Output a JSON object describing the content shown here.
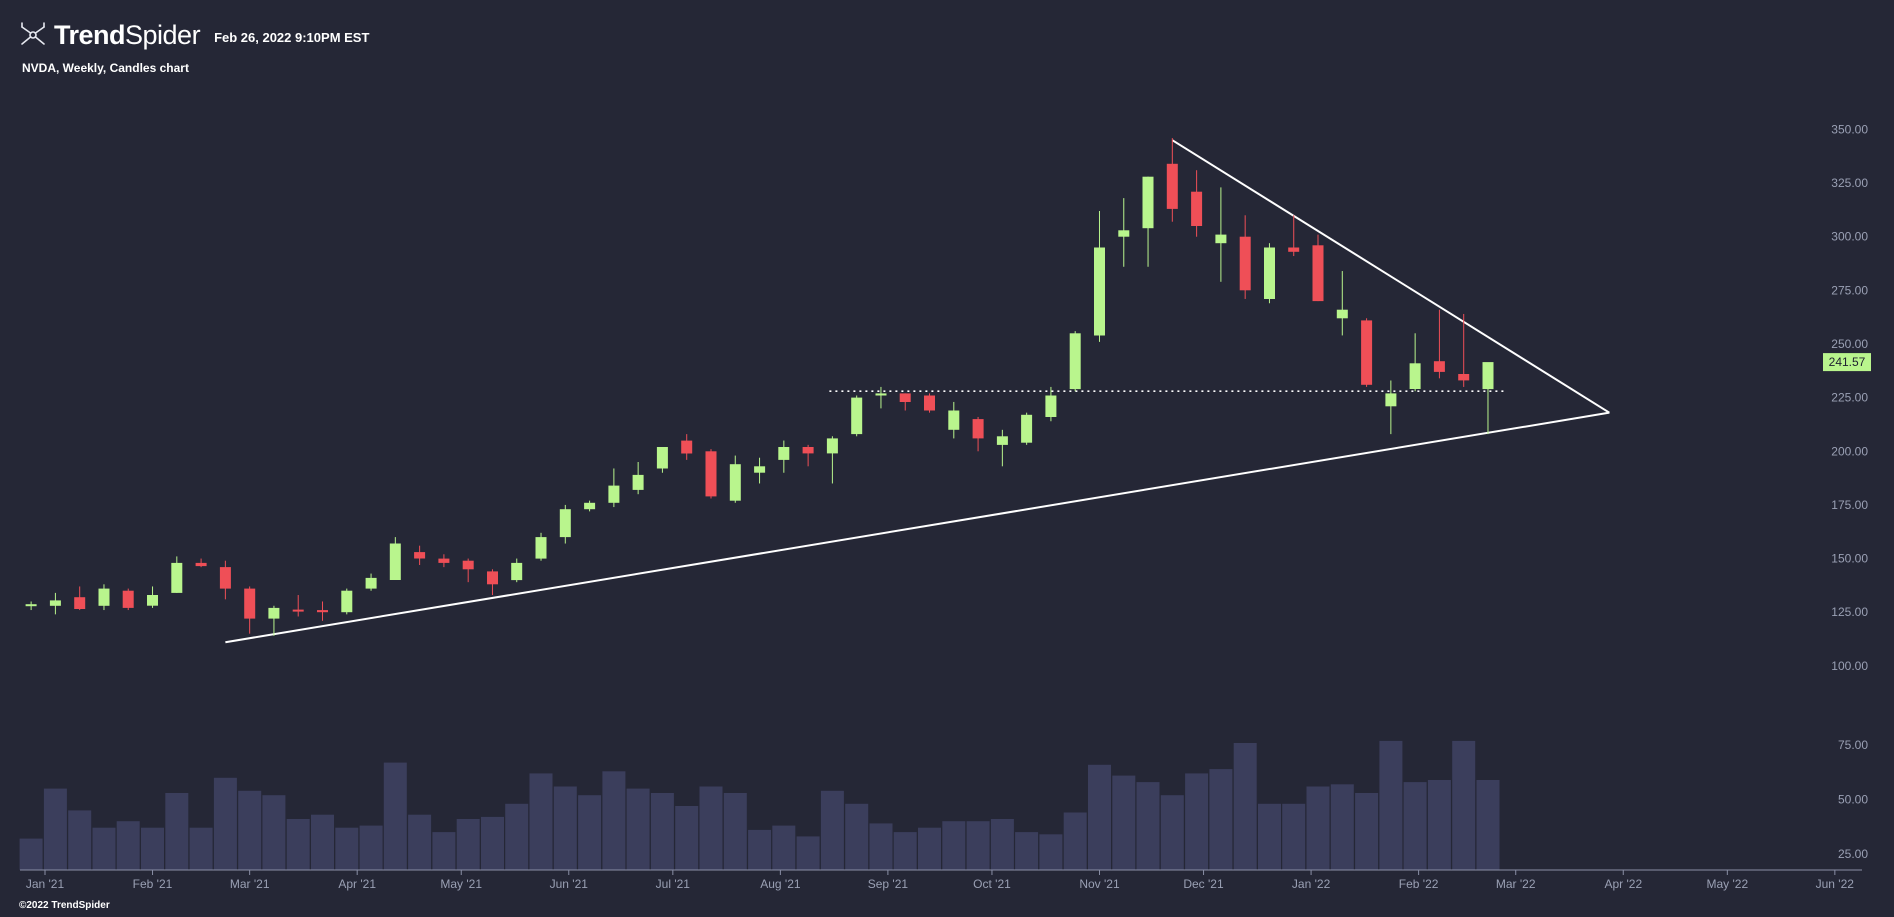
{
  "header": {
    "brand_bold": "Trend",
    "brand_light": "Spider",
    "timestamp": "Feb 26, 2022 9:10PM EST",
    "logo_icon": "trendspider-logo-icon"
  },
  "subtitle": "NVDA, Weekly, Candles chart",
  "copyright": "©2022 TrendSpider",
  "colors": {
    "background": "#252736",
    "up": "#b9f58d",
    "down": "#ef4f57",
    "volume": "#3b3e5c",
    "trendline": "#ffffff",
    "axis_text": "#9aa0b4"
  },
  "chart_data": {
    "type": "candlestick",
    "ylim": [
      92,
      360
    ],
    "volume_ylim": [
      18,
      82
    ],
    "y_ticks": [
      "350.00",
      "325.00",
      "300.00",
      "275.00",
      "250.00",
      "225.00",
      "200.00",
      "175.00",
      "150.00",
      "125.00",
      "100.00"
    ],
    "volume_ticks": [
      "75.00",
      "50.00",
      "25.00"
    ],
    "x_ticks": [
      {
        "label": "Jan '21",
        "date": "2021-01-01"
      },
      {
        "label": "Feb '21",
        "date": "2021-02-01"
      },
      {
        "label": "Mar '21",
        "date": "2021-03-01"
      },
      {
        "label": "Apr '21",
        "date": "2021-04-01"
      },
      {
        "label": "May '21",
        "date": "2021-05-01"
      },
      {
        "label": "Jun '21",
        "date": "2021-06-01"
      },
      {
        "label": "Jul '21",
        "date": "2021-07-01"
      },
      {
        "label": "Aug '21",
        "date": "2021-08-01"
      },
      {
        "label": "Sep '21",
        "date": "2021-09-01"
      },
      {
        "label": "Oct '21",
        "date": "2021-10-01"
      },
      {
        "label": "Nov '21",
        "date": "2021-11-01"
      },
      {
        "label": "Dec '21",
        "date": "2021-12-01"
      },
      {
        "label": "Jan '22",
        "date": "2022-01-01"
      },
      {
        "label": "Feb '22",
        "date": "2022-02-01"
      },
      {
        "label": "Mar '22",
        "date": "2022-03-01"
      },
      {
        "label": "Apr '22",
        "date": "2022-04-01"
      },
      {
        "label": "May '22",
        "date": "2022-05-01"
      },
      {
        "label": "Jun '22",
        "date": "2022-06-01"
      }
    ],
    "last_price": "241.57",
    "candles": [
      {
        "date": "2020-12-28",
        "o": 128,
        "h": 130,
        "l": 126,
        "c": 128.5
      },
      {
        "date": "2021-01-04",
        "o": 128,
        "h": 134,
        "l": 124,
        "c": 130.5
      },
      {
        "date": "2021-01-11",
        "o": 132,
        "h": 137,
        "l": 126,
        "c": 126.5
      },
      {
        "date": "2021-01-18",
        "o": 128,
        "h": 138,
        "l": 126,
        "c": 136
      },
      {
        "date": "2021-01-25",
        "o": 135,
        "h": 136,
        "l": 126,
        "c": 127
      },
      {
        "date": "2021-02-01",
        "o": 128,
        "h": 137,
        "l": 127,
        "c": 133
      },
      {
        "date": "2021-02-08",
        "o": 134,
        "h": 151,
        "l": 134,
        "c": 148
      },
      {
        "date": "2021-02-15",
        "o": 148,
        "h": 150,
        "l": 146,
        "c": 146.5
      },
      {
        "date": "2021-02-22",
        "o": 146,
        "h": 149,
        "l": 131,
        "c": 136
      },
      {
        "date": "2021-03-01",
        "o": 136,
        "h": 137,
        "l": 115,
        "c": 122
      },
      {
        "date": "2021-03-08",
        "o": 122,
        "h": 128,
        "l": 114,
        "c": 127
      },
      {
        "date": "2021-03-15",
        "o": 126,
        "h": 133,
        "l": 123,
        "c": 125.5
      },
      {
        "date": "2021-03-22",
        "o": 126,
        "h": 130,
        "l": 121,
        "c": 125
      },
      {
        "date": "2021-03-29",
        "o": 125,
        "h": 136,
        "l": 124,
        "c": 135
      },
      {
        "date": "2021-04-05",
        "o": 136,
        "h": 143,
        "l": 135,
        "c": 141
      },
      {
        "date": "2021-04-12",
        "o": 140,
        "h": 160,
        "l": 140,
        "c": 157
      },
      {
        "date": "2021-04-19",
        "o": 153,
        "h": 156,
        "l": 147,
        "c": 150
      },
      {
        "date": "2021-04-26",
        "o": 150,
        "h": 152,
        "l": 146,
        "c": 148
      },
      {
        "date": "2021-05-03",
        "o": 149,
        "h": 150,
        "l": 139,
        "c": 145
      },
      {
        "date": "2021-05-10",
        "o": 144,
        "h": 145,
        "l": 133,
        "c": 138
      },
      {
        "date": "2021-05-17",
        "o": 140,
        "h": 150,
        "l": 139,
        "c": 148
      },
      {
        "date": "2021-05-24",
        "o": 150,
        "h": 162,
        "l": 149,
        "c": 160
      },
      {
        "date": "2021-05-31",
        "o": 160,
        "h": 175,
        "l": 157,
        "c": 173
      },
      {
        "date": "2021-06-07",
        "o": 173,
        "h": 177,
        "l": 172,
        "c": 176
      },
      {
        "date": "2021-06-14",
        "o": 176,
        "h": 192,
        "l": 174,
        "c": 184
      },
      {
        "date": "2021-06-21",
        "o": 182,
        "h": 195,
        "l": 180,
        "c": 189
      },
      {
        "date": "2021-06-28",
        "o": 192,
        "h": 202,
        "l": 190,
        "c": 202
      },
      {
        "date": "2021-07-05",
        "o": 205,
        "h": 208,
        "l": 196,
        "c": 199
      },
      {
        "date": "2021-07-12",
        "o": 200,
        "h": 201,
        "l": 178,
        "c": 179
      },
      {
        "date": "2021-07-19",
        "o": 177,
        "h": 198,
        "l": 176,
        "c": 194
      },
      {
        "date": "2021-07-26",
        "o": 190,
        "h": 197,
        "l": 185,
        "c": 193
      },
      {
        "date": "2021-08-02",
        "o": 196,
        "h": 205,
        "l": 190,
        "c": 202
      },
      {
        "date": "2021-08-09",
        "o": 202,
        "h": 203,
        "l": 193,
        "c": 199
      },
      {
        "date": "2021-08-16",
        "o": 199,
        "h": 207,
        "l": 185,
        "c": 206
      },
      {
        "date": "2021-08-23",
        "o": 208,
        "h": 226,
        "l": 207,
        "c": 225
      },
      {
        "date": "2021-08-30",
        "o": 226,
        "h": 230,
        "l": 220,
        "c": 227
      },
      {
        "date": "2021-09-06",
        "o": 227,
        "h": 227,
        "l": 219,
        "c": 223
      },
      {
        "date": "2021-09-13",
        "o": 226,
        "h": 227,
        "l": 218,
        "c": 219
      },
      {
        "date": "2021-09-20",
        "o": 210,
        "h": 223,
        "l": 206,
        "c": 219
      },
      {
        "date": "2021-09-27",
        "o": 215,
        "h": 216,
        "l": 200,
        "c": 206
      },
      {
        "date": "2021-10-04",
        "o": 203,
        "h": 210,
        "l": 193,
        "c": 207
      },
      {
        "date": "2021-10-11",
        "o": 204,
        "h": 218,
        "l": 203,
        "c": 217
      },
      {
        "date": "2021-10-18",
        "o": 216,
        "h": 230,
        "l": 214,
        "c": 226
      },
      {
        "date": "2021-10-25",
        "o": 229,
        "h": 256,
        "l": 228,
        "c": 255
      },
      {
        "date": "2021-11-01",
        "o": 254,
        "h": 312,
        "l": 251,
        "c": 295
      },
      {
        "date": "2021-11-08",
        "o": 300,
        "h": 318,
        "l": 286,
        "c": 303
      },
      {
        "date": "2021-11-15",
        "o": 304,
        "h": 328,
        "l": 286,
        "c": 328
      },
      {
        "date": "2021-11-22",
        "o": 334,
        "h": 346,
        "l": 307,
        "c": 313
      },
      {
        "date": "2021-11-29",
        "o": 321,
        "h": 331,
        "l": 300,
        "c": 305
      },
      {
        "date": "2021-12-06",
        "o": 297,
        "h": 323,
        "l": 279,
        "c": 301
      },
      {
        "date": "2021-12-13",
        "o": 300,
        "h": 310,
        "l": 271,
        "c": 275
      },
      {
        "date": "2021-12-20",
        "o": 271,
        "h": 297,
        "l": 269,
        "c": 295
      },
      {
        "date": "2021-12-27",
        "o": 295,
        "h": 310,
        "l": 291,
        "c": 293
      },
      {
        "date": "2022-01-03",
        "o": 296,
        "h": 301,
        "l": 270,
        "c": 270
      },
      {
        "date": "2022-01-10",
        "o": 262,
        "h": 284,
        "l": 254,
        "c": 266
      },
      {
        "date": "2022-01-17",
        "o": 261,
        "h": 262,
        "l": 230,
        "c": 231
      },
      {
        "date": "2022-01-24",
        "o": 221,
        "h": 233,
        "l": 208,
        "c": 227
      },
      {
        "date": "2022-01-31",
        "o": 229,
        "h": 255,
        "l": 228,
        "c": 241
      },
      {
        "date": "2022-02-07",
        "o": 242,
        "h": 266,
        "l": 234,
        "c": 237
      },
      {
        "date": "2022-02-14",
        "o": 236,
        "h": 264,
        "l": 230,
        "c": 233
      },
      {
        "date": "2022-02-21",
        "o": 229,
        "h": 241,
        "l": 208,
        "c": 241.57
      }
    ],
    "volumes": [
      32,
      55,
      45,
      37,
      40,
      37,
      53,
      37,
      60,
      54,
      52,
      41,
      43,
      37,
      38,
      67,
      43,
      35,
      41,
      42,
      48,
      62,
      56,
      52,
      63,
      55,
      53,
      47,
      56,
      53,
      36,
      38,
      33,
      54,
      48,
      39,
      35,
      37,
      40,
      40,
      41,
      35,
      34,
      44,
      66,
      61,
      58,
      52,
      62,
      64,
      76,
      48,
      48,
      56,
      57,
      53,
      77,
      58,
      59,
      77,
      59
    ],
    "overlays": {
      "support_line": {
        "from": {
          "date": "2021-02-22",
          "price": 111
        },
        "to": {
          "date": "2022-03-28",
          "price": 218
        }
      },
      "resistance_line": {
        "from": {
          "date": "2021-11-22",
          "price": 345
        },
        "to": {
          "date": "2022-03-28",
          "price": 218
        }
      },
      "horizontal_dotted": {
        "from_date": "2021-08-16",
        "to_date": "2022-02-21",
        "price": 228
      }
    }
  }
}
